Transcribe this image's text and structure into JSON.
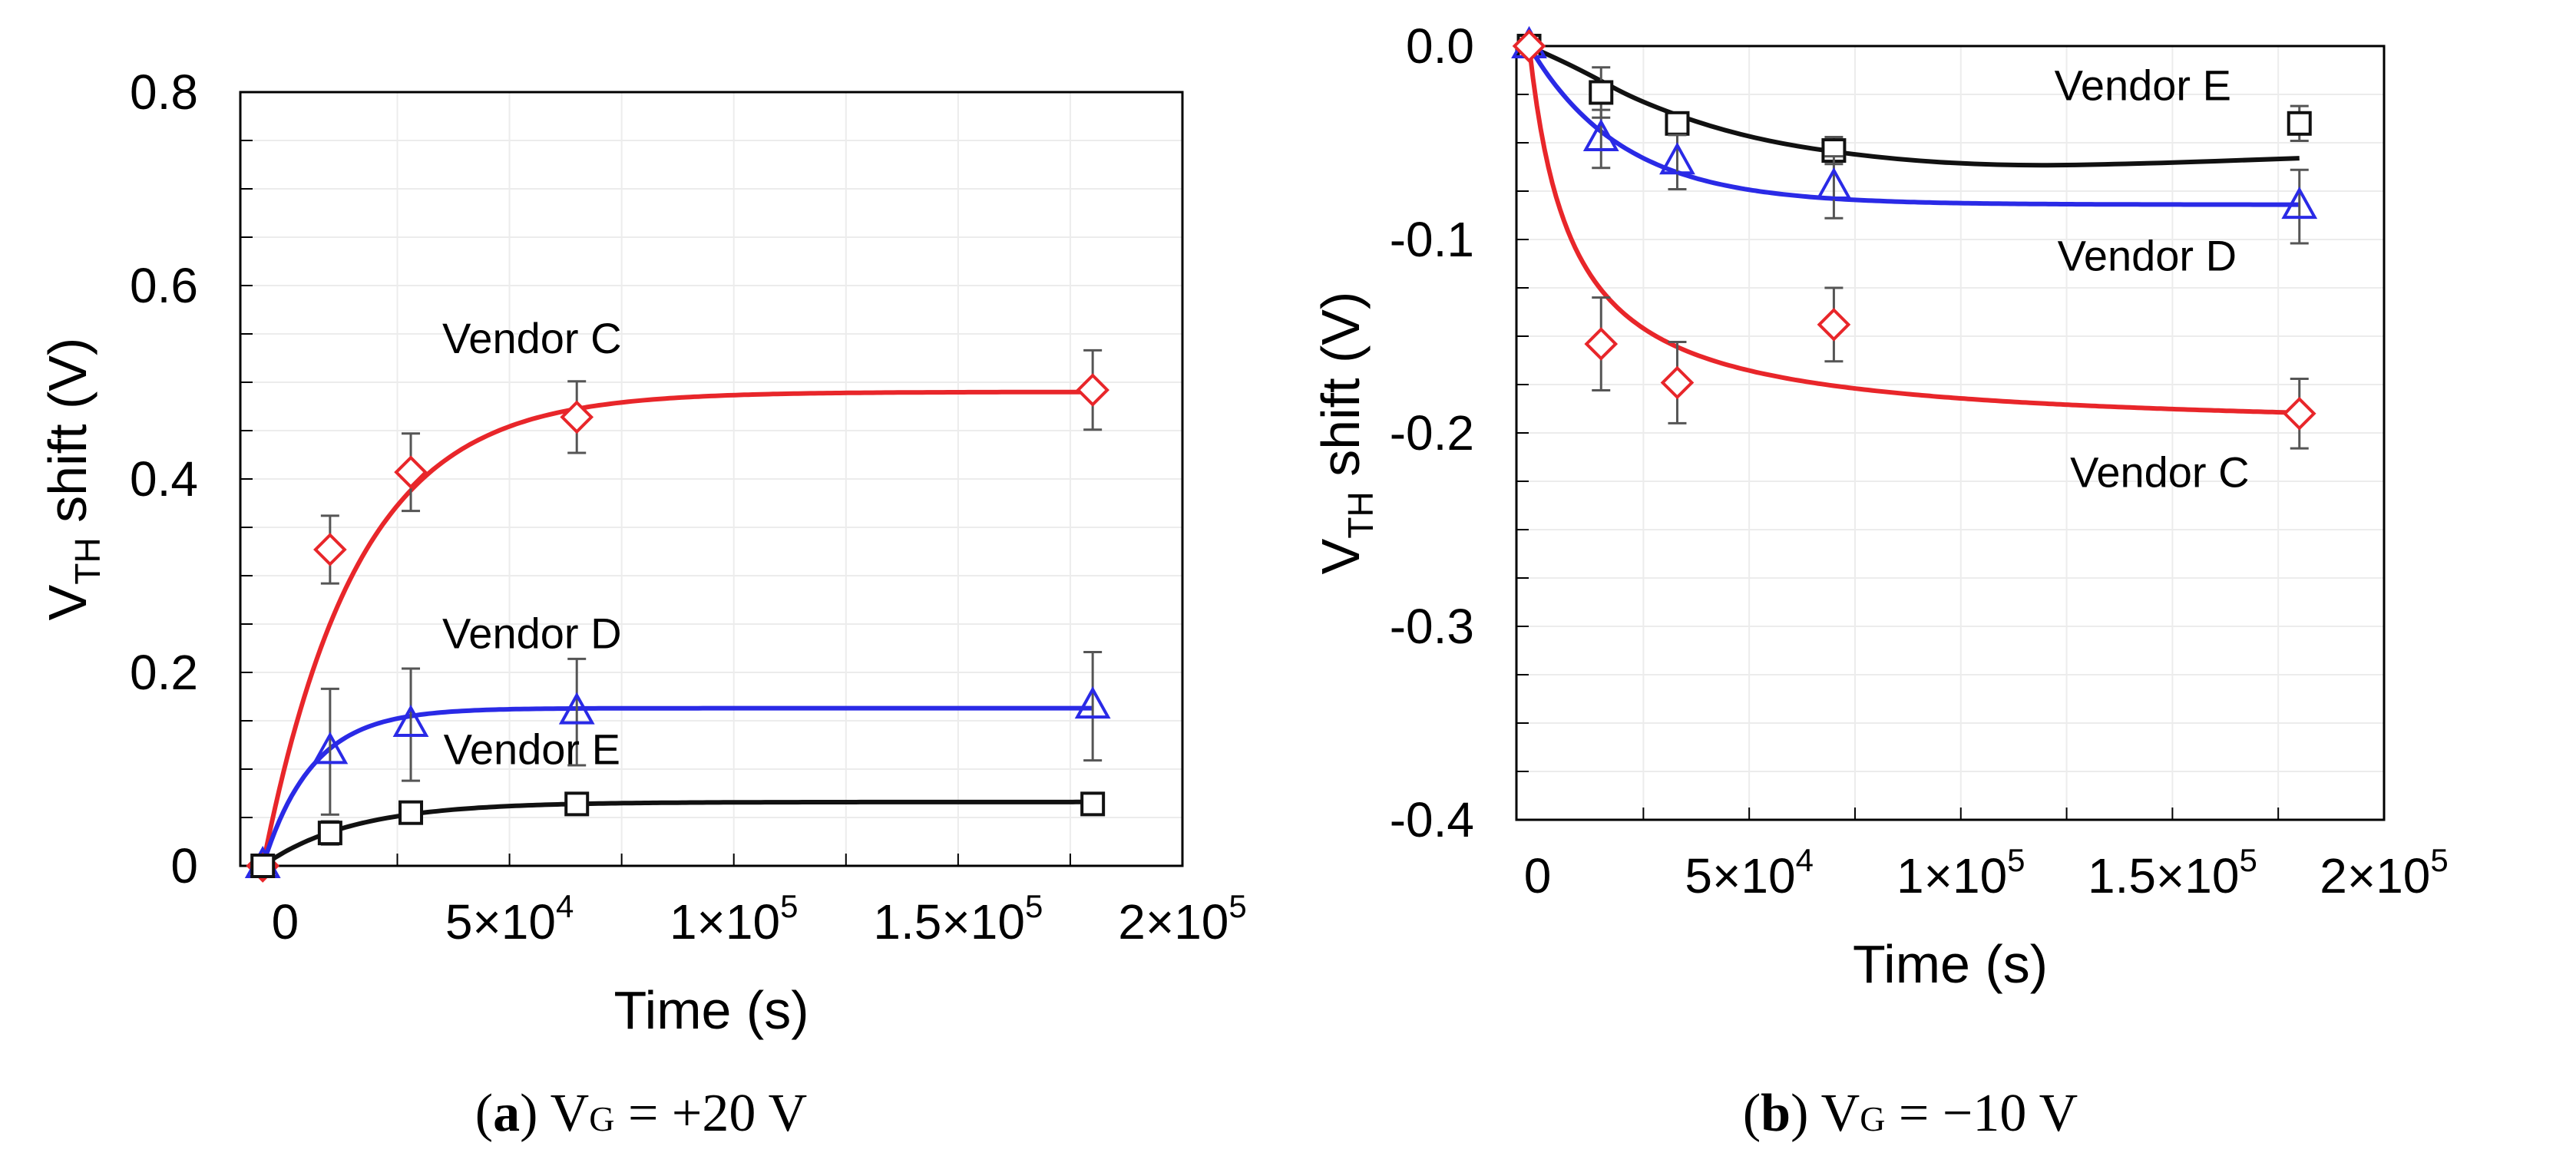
{
  "chart_data": [
    {
      "type": "scatter",
      "panel": "a",
      "caption": {
        "letter": "a",
        "pre": "V",
        "sub": "G",
        "post": " = +20 V"
      },
      "xlabel": "Time (s)",
      "ylabel": {
        "main": "V",
        "sub": "TH",
        "rest": " shift (V)"
      },
      "xlim": [
        -10000,
        200000
      ],
      "ylim": [
        0,
        0.8
      ],
      "x_ticks": [
        {
          "value": 0,
          "mant": "0",
          "exp": ""
        },
        {
          "value": 50000,
          "mant": "5×10",
          "exp": "4"
        },
        {
          "value": 100000,
          "mant": "1×10",
          "exp": "5"
        },
        {
          "value": 150000,
          "mant": "1.5×10",
          "exp": "5"
        },
        {
          "value": 200000,
          "mant": "2×10",
          "exp": "5"
        }
      ],
      "y_ticks": [
        {
          "value": 0,
          "label": "0"
        },
        {
          "value": 0.2,
          "label": "0.2"
        },
        {
          "value": 0.4,
          "label": "0.4"
        },
        {
          "value": 0.6,
          "label": "0.6"
        },
        {
          "value": 0.8,
          "label": "0.8"
        }
      ],
      "series": [
        {
          "name": "Vendor C",
          "color": "#e8262a",
          "marker": "diamond",
          "x": [
            -5000,
            10000,
            28000,
            65000,
            180000
          ],
          "y": [
            0,
            0.327,
            0.407,
            0.464,
            0.492
          ],
          "err": [
            0,
            0.035,
            0.04,
            0.037,
            0.041
          ],
          "fit": {
            "model": "exp",
            "a": 0.49,
            "tau": 21000,
            "x0": -5000
          },
          "label_at": {
            "x": 55000,
            "y": 0.53
          }
        },
        {
          "name": "Vendor D",
          "color": "#2a2ae6",
          "marker": "triangle",
          "x": [
            -5000,
            10000,
            28000,
            65000,
            180000
          ],
          "y": [
            0,
            0.118,
            0.146,
            0.159,
            0.165
          ],
          "err": [
            0,
            0.065,
            0.058,
            0.055,
            0.056
          ],
          "fit": {
            "model": "exp",
            "a": 0.163,
            "tau": 11000,
            "x0": -5000
          },
          "label_at": {
            "x": 55000,
            "y": 0.225
          }
        },
        {
          "name": "Vendor E",
          "color": "#111111",
          "marker": "square",
          "x": [
            -5000,
            10000,
            28000,
            65000,
            180000
          ],
          "y": [
            0,
            0.034,
            0.055,
            0.064,
            0.064
          ],
          "err": [
            0,
            0.012,
            0.0,
            0.0,
            0.0
          ],
          "fit": {
            "model": "exp",
            "a": 0.066,
            "tau": 20000,
            "x0": -5000
          },
          "label_at": {
            "x": 55000,
            "y": 0.105
          }
        }
      ]
    },
    {
      "type": "scatter",
      "panel": "b",
      "caption": {
        "letter": "b",
        "pre": "V",
        "sub": "G",
        "post": " = −10 V"
      },
      "xlabel": "Time (s)",
      "ylabel": {
        "main": "V",
        "sub": "TH",
        "rest": " shift (V)"
      },
      "xlim": [
        -5000,
        200000
      ],
      "ylim": [
        -0.4,
        0.0
      ],
      "x_ticks": [
        {
          "value": 0,
          "mant": "0",
          "exp": ""
        },
        {
          "value": 50000,
          "mant": "5×10",
          "exp": "4"
        },
        {
          "value": 100000,
          "mant": "1×10",
          "exp": "5"
        },
        {
          "value": 150000,
          "mant": "1.5×10",
          "exp": "5"
        },
        {
          "value": 200000,
          "mant": "2×10",
          "exp": "5"
        }
      ],
      "y_ticks": [
        {
          "value": 0.0,
          "label": "0.0"
        },
        {
          "value": -0.1,
          "label": "-0.1"
        },
        {
          "value": -0.2,
          "label": "-0.2"
        },
        {
          "value": -0.3,
          "label": "-0.3"
        },
        {
          "value": -0.4,
          "label": "-0.4"
        }
      ],
      "series": [
        {
          "name": "Vendor E",
          "color": "#111111",
          "marker": "square",
          "x": [
            -2000,
            15000,
            33000,
            70000,
            180000
          ],
          "y": [
            0,
            -0.024,
            -0.04,
            -0.054,
            -0.04
          ],
          "err": [
            0,
            0.013,
            0.0,
            0.007,
            0.009
          ],
          "fit": {
            "model": "hump",
            "points": [
              [
                -2000,
                0
              ],
              [
                10000,
                -0.012
              ],
              [
                25000,
                -0.03
              ],
              [
                50000,
                -0.048
              ],
              [
                80000,
                -0.058
              ],
              [
                110000,
                -0.062
              ],
              [
                140000,
                -0.061
              ],
              [
                180000,
                -0.058
              ]
            ]
          },
          "label_at": {
            "x": 143000,
            "y": -0.028
          }
        },
        {
          "name": "Vendor D",
          "color": "#2a2ae6",
          "marker": "triangle",
          "x": [
            -2000,
            15000,
            33000,
            70000,
            180000
          ],
          "y": [
            0,
            -0.048,
            -0.06,
            -0.073,
            -0.083
          ],
          "err": [
            0,
            0.015,
            0.014,
            0.016,
            0.019
          ],
          "fit": {
            "model": "exp",
            "a": -0.082,
            "tau": 22000,
            "x0": -2000
          },
          "label_at": {
            "x": 144000,
            "y": -0.116
          }
        },
        {
          "name": "Vendor C",
          "color": "#e8262a",
          "marker": "diamond",
          "x": [
            -2000,
            15000,
            33000,
            70000,
            180000
          ],
          "y": [
            0,
            -0.154,
            -0.174,
            -0.144,
            -0.19
          ],
          "err": [
            0,
            0.024,
            0.021,
            0.019,
            0.018
          ],
          "fit": {
            "model": "hyper",
            "a": -0.2,
            "b": 10000,
            "x0": -2000
          },
          "label_at": {
            "x": 147000,
            "y": -0.228
          }
        }
      ]
    }
  ]
}
